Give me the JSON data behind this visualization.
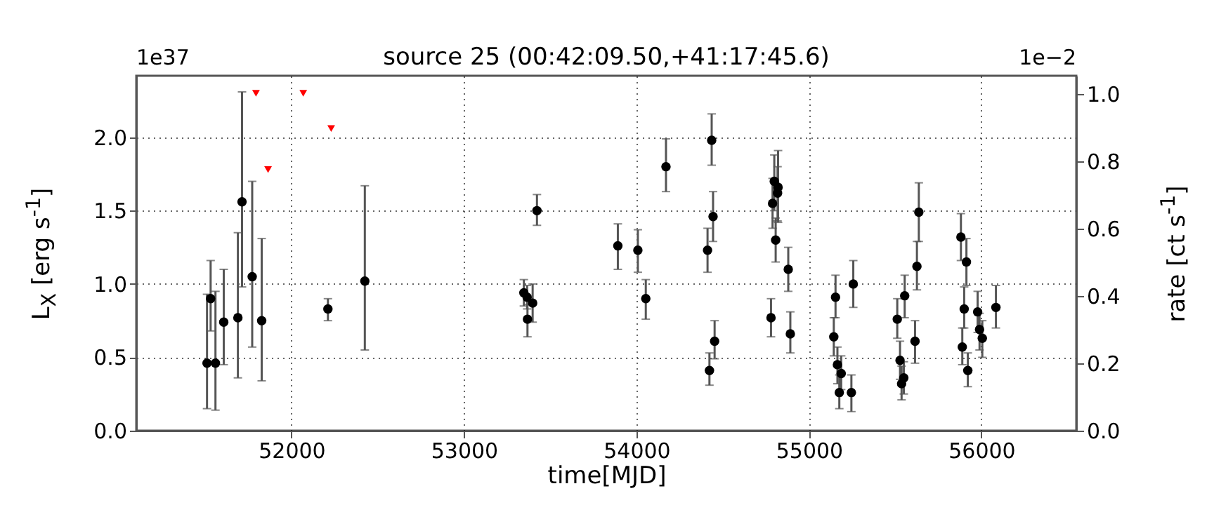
{
  "chart_data": {
    "type": "scatter",
    "title": "source 25    (00:42:09.50,+41:17:45.6)",
    "xlabel": "time[MJD]",
    "ylabel": "L$_{X}$ [erg s$^{-1}$]",
    "y2label": "rate [ct s$^{-1}$]",
    "annotations": [
      "1e37",
      "1e−2"
    ],
    "xlim": [
      51100,
      56550
    ],
    "xticks": [
      52000,
      53000,
      54000,
      55000,
      56000
    ],
    "ylim": [
      0,
      2.42
    ],
    "yticks": [
      {
        "value": 0,
        "label": "0.0"
      },
      {
        "value": 0.5,
        "label": "0.5"
      },
      {
        "value": 1,
        "label": "1.0"
      },
      {
        "value": 1.5,
        "label": "1.5"
      },
      {
        "value": 2,
        "label": "2.0"
      }
    ],
    "y2lim": [
      0,
      1.054
    ],
    "y2ticks": [
      {
        "value": 0,
        "label": "0.0"
      },
      {
        "value": 0.2,
        "label": "0.2"
      },
      {
        "value": 0.4,
        "label": "0.4"
      },
      {
        "value": 0.6,
        "label": "0.6"
      },
      {
        "value": 0.8,
        "label": "0.8"
      },
      {
        "value": 1,
        "label": "1.0"
      }
    ],
    "grid": true,
    "series": [
      {
        "marker": "circle",
        "color": "#000000",
        "x": [
          51510,
          51531,
          51559,
          51607,
          51689,
          51713,
          51772,
          51827,
          52211,
          52425,
          53347,
          53366,
          53368,
          53398,
          53423,
          53892,
          54008,
          54054,
          54171,
          54436,
          54444,
          54412,
          54453,
          54423,
          54799,
          54789,
          54821,
          54818,
          54807,
          54780,
          54880,
          54892,
          55154,
          55144,
          55165,
          55187,
          55176,
          55246,
          55257,
          55512,
          55528,
          55537,
          55550,
          55555,
          55615,
          55626,
          55637,
          55881,
          55913,
          55900,
          55889,
          55921,
          55978,
          55989,
          56005,
          56084
        ],
        "values": [
          0.46,
          0.9,
          0.46,
          0.74,
          0.77,
          1.56,
          1.05,
          0.75,
          0.83,
          1.02,
          0.94,
          0.91,
          0.76,
          0.87,
          1.5,
          1.26,
          1.23,
          0.9,
          1.8,
          1.98,
          1.46,
          1.23,
          0.61,
          0.41,
          1.7,
          1.55,
          1.66,
          1.62,
          1.3,
          0.77,
          1.1,
          0.66,
          0.91,
          0.64,
          0.45,
          0.39,
          0.26,
          0.26,
          1.0,
          0.76,
          0.48,
          0.32,
          0.36,
          0.92,
          0.61,
          1.12,
          1.49,
          1.32,
          1.15,
          0.83,
          0.57,
          0.41,
          0.81,
          0.69,
          0.63,
          0.84
        ],
        "errors": [
          [
            0.15,
            0.93
          ],
          [
            0.68,
            1.16
          ],
          [
            0.14,
            0.95
          ],
          [
            0.45,
            1.1
          ],
          [
            0.36,
            1.35
          ],
          [
            0.98,
            2.31
          ],
          [
            0.57,
            1.7
          ],
          [
            0.34,
            1.31
          ],
          [
            0.75,
            0.9
          ],
          [
            0.55,
            1.67
          ],
          [
            0.85,
            1.03
          ],
          [
            0.83,
            0.99
          ],
          [
            0.64,
            0.86
          ],
          [
            0.74,
            1.0
          ],
          [
            1.4,
            1.61
          ],
          [
            1.1,
            1.41
          ],
          [
            1.08,
            1.37
          ],
          [
            0.76,
            1.03
          ],
          [
            1.63,
            1.99
          ],
          [
            1.81,
            2.16
          ],
          [
            1.29,
            1.63
          ],
          [
            1.08,
            1.38
          ],
          [
            0.49,
            0.75
          ],
          [
            0.31,
            0.53
          ],
          [
            1.5,
            1.88
          ],
          [
            1.38,
            1.72
          ],
          [
            1.42,
            1.91
          ],
          [
            1.43,
            1.8
          ],
          [
            1.15,
            1.45
          ],
          [
            0.64,
            0.9
          ],
          [
            0.95,
            1.25
          ],
          [
            0.53,
            0.81
          ],
          [
            0.77,
            1.06
          ],
          [
            0.51,
            0.77
          ],
          [
            0.32,
            0.57
          ],
          [
            0.28,
            0.51
          ],
          [
            0.15,
            0.38
          ],
          [
            0.13,
            0.38
          ],
          [
            0.84,
            1.16
          ],
          [
            0.63,
            0.9
          ],
          [
            0.35,
            0.61
          ],
          [
            0.21,
            0.44
          ],
          [
            0.25,
            0.47
          ],
          [
            0.77,
            1.06
          ],
          [
            0.46,
            0.75
          ],
          [
            0.96,
            1.29
          ],
          [
            1.29,
            1.69
          ],
          [
            1.16,
            1.48
          ],
          [
            0.99,
            1.31
          ],
          [
            0.7,
            0.98
          ],
          [
            0.45,
            0.7
          ],
          [
            0.3,
            0.53
          ],
          [
            0.67,
            0.95
          ],
          [
            0.55,
            0.8
          ],
          [
            0.5,
            0.75
          ],
          [
            0.7,
            0.99
          ]
        ]
      },
      {
        "marker": "triangle",
        "color": "#ff0000",
        "x": [
          51794,
          51864,
          52068,
          52230
        ],
        "values": [
          2.3,
          1.78,
          2.3,
          2.06
        ]
      }
    ]
  }
}
